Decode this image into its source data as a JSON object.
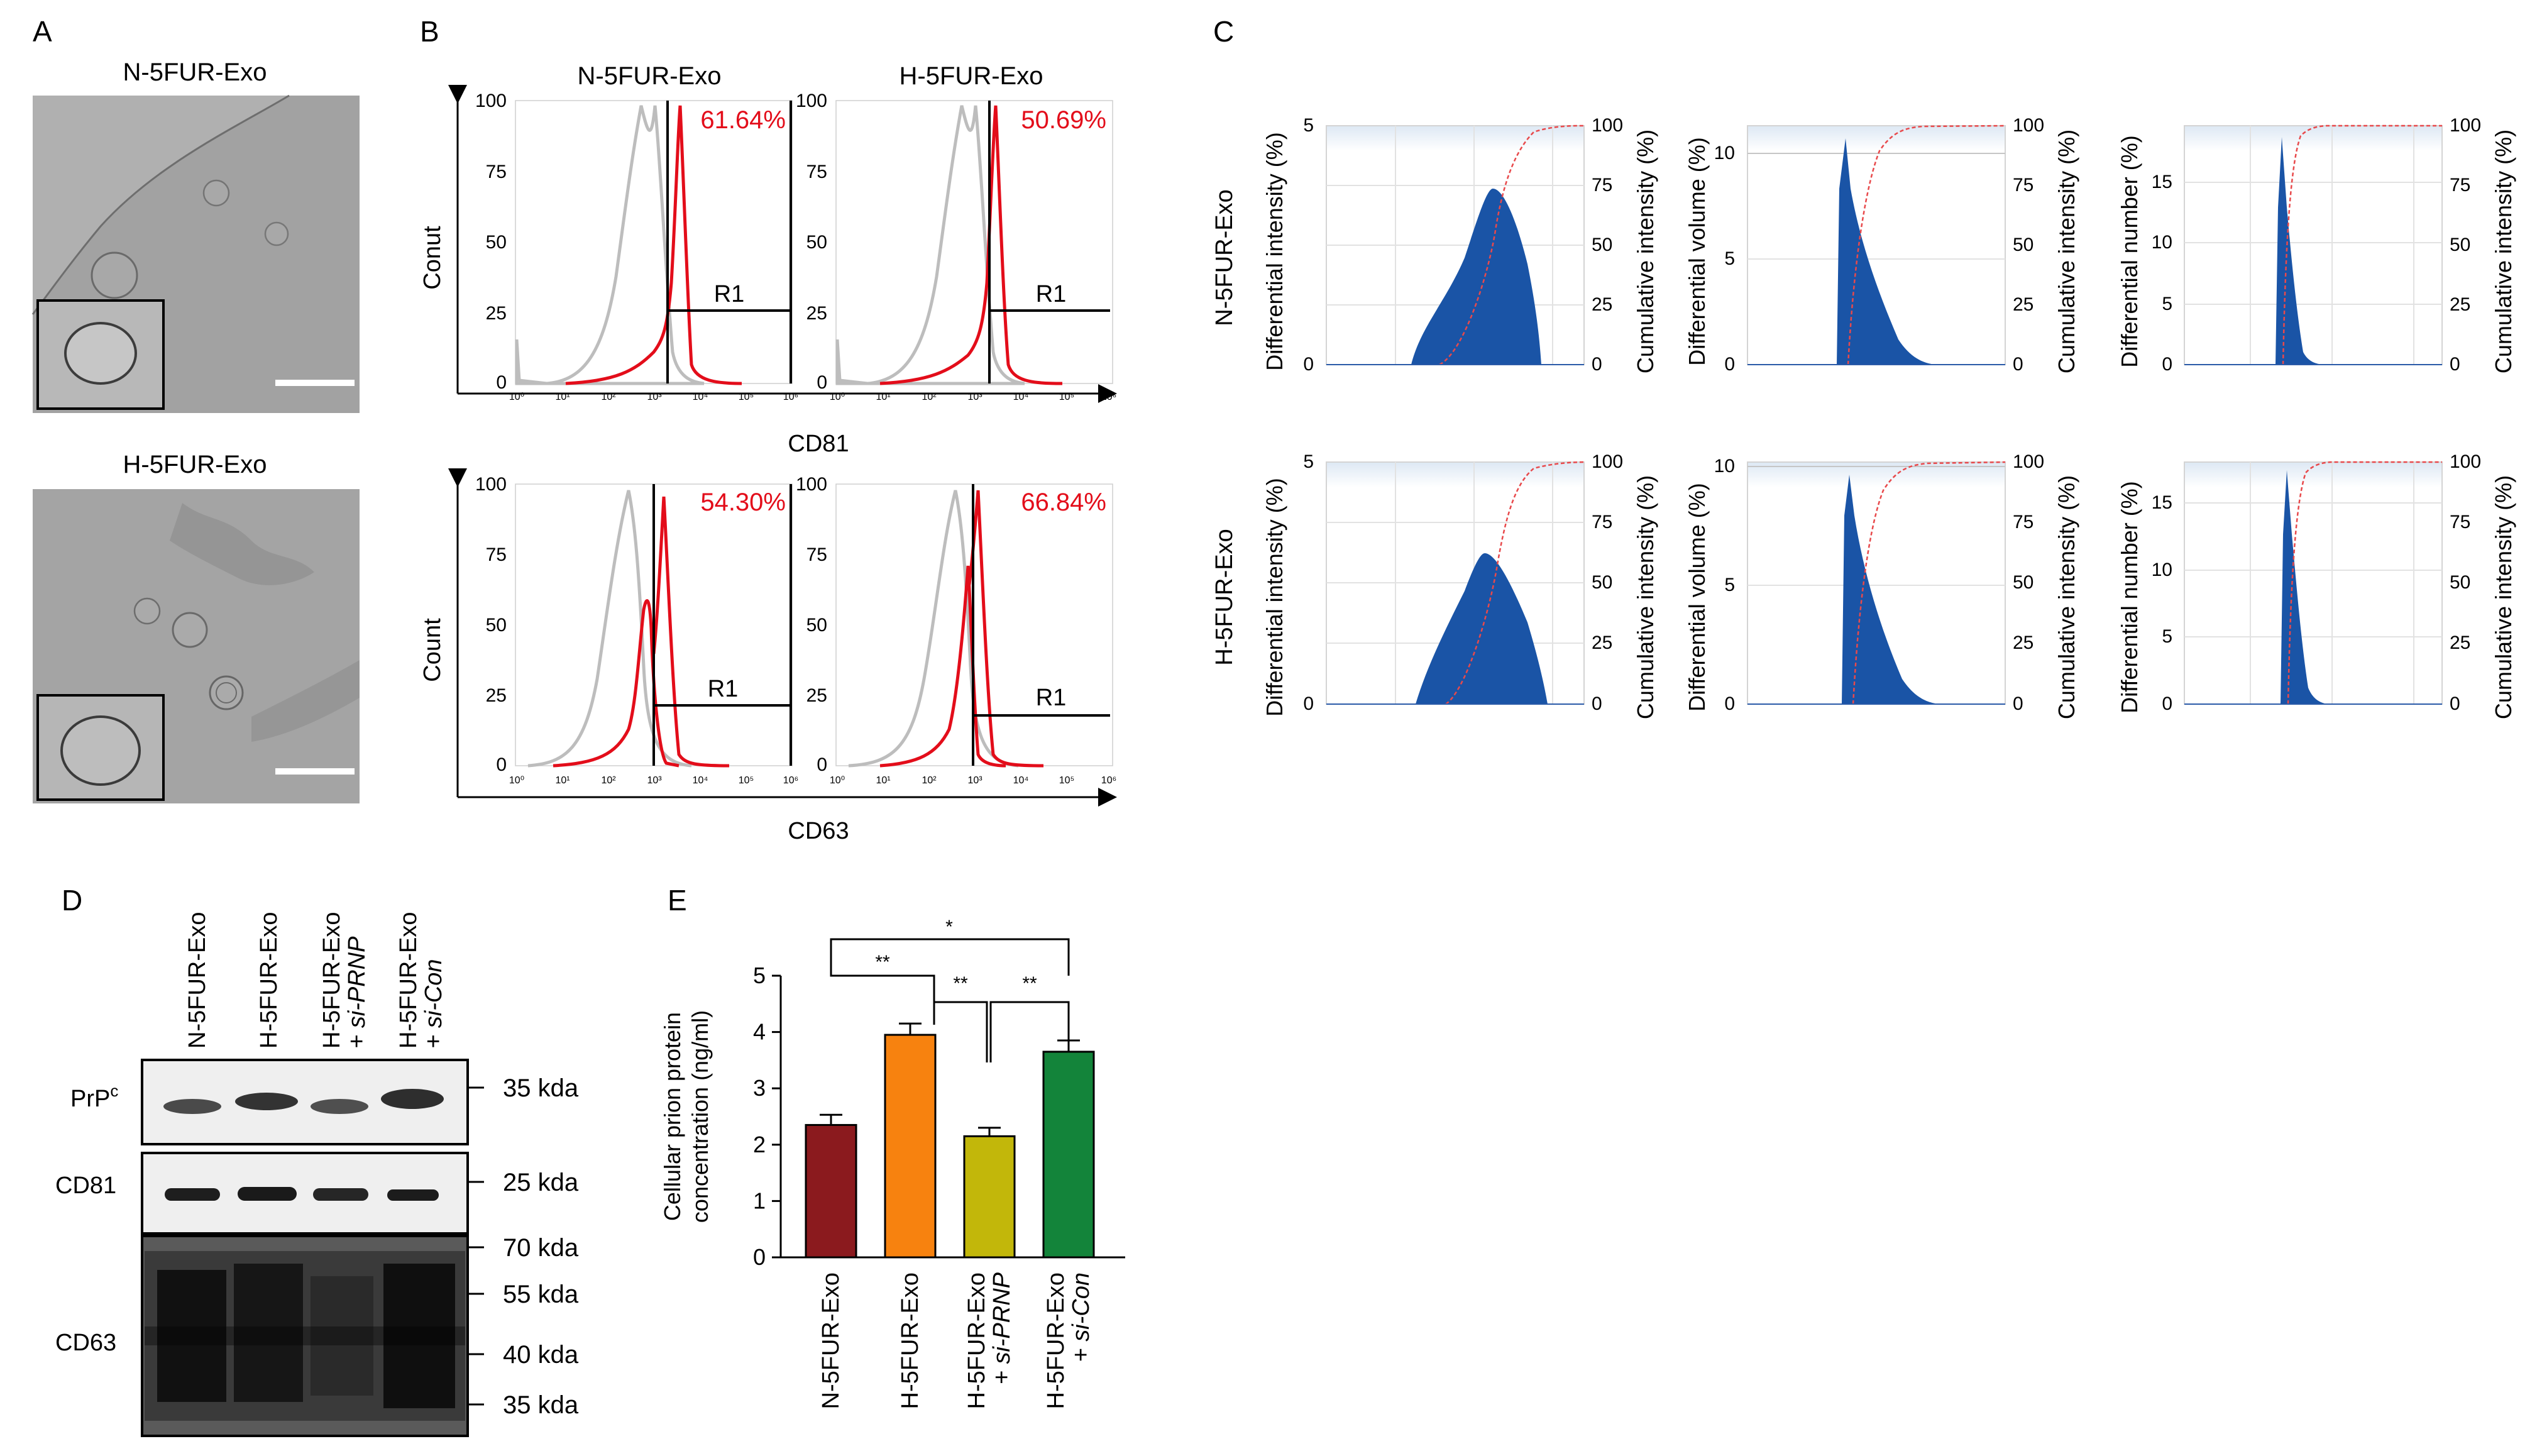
{
  "figure": {
    "panelA": {
      "letter": "A",
      "top_title": "N-5FUR-Exo",
      "bottom_title": "H-5FUR-Exo"
    },
    "panelB": {
      "letter": "B",
      "titles": [
        "N-5FUR-Exo",
        "H-5FUR-Exo"
      ],
      "top_ylabel": "Conut",
      "bottom_ylabel": "Count",
      "top_xlabel": "CD81",
      "bottom_xlabel": "CD63",
      "gate": "R1",
      "percentages": {
        "n_cd81": "61.64%",
        "h_cd81": "50.69%",
        "n_cd63": "54.30%",
        "h_cd63": "66.84%"
      },
      "yticks": [
        "0",
        "25",
        "50",
        "75",
        "100"
      ],
      "xticks": [
        "10⁰",
        "10¹",
        "10²",
        "10³",
        "10⁴",
        "10⁵",
        "10⁶"
      ]
    },
    "panelC": {
      "letter": "C",
      "row_labels": [
        "N-5FUR-Exo",
        "H-5FUR-Exo"
      ],
      "ylabels": {
        "intensity": "Differential intensity (%)",
        "volume": "Differential volume (%)",
        "number": "Differential number (%)",
        "cumulative": "Cumulative intensity (%)"
      },
      "right_ticks": [
        "0",
        "25",
        "50",
        "75",
        "100"
      ],
      "intensity_ticks": [
        "0",
        "5"
      ],
      "volume_ticks": [
        "0",
        "5",
        "10"
      ],
      "number_ticks": [
        "0",
        "5",
        "10",
        "15"
      ]
    },
    "panelD": {
      "letter": "D",
      "lanes": [
        {
          "line1": "N-5FUR-Exo",
          "line2": ""
        },
        {
          "line1": "H-5FUR-Exo",
          "line2": ""
        },
        {
          "line1": "H-5FUR-Exo",
          "line2": "+ si-PRNP"
        },
        {
          "line1": "H-5FUR-Exo",
          "line2": "+ si-Con"
        }
      ],
      "blots": {
        "prp": "PrP",
        "prp_sup": "c",
        "cd81": "CD81",
        "cd63": "CD63"
      },
      "markers": {
        "m35a": "35 kda",
        "m25": "25 kda",
        "m70": "70 kda",
        "m55": "55 kda",
        "m40": "40 kda",
        "m35b": "35 kda"
      }
    },
    "panelE": {
      "letter": "E",
      "ylabel_line1": "Cellular prion protein",
      "ylabel_line2": "concentration (ng/ml)",
      "sig": {
        "s1": "**",
        "s2": "**",
        "s3": "**",
        "s4": "*"
      }
    }
  },
  "chart_data": {
    "type": "bar",
    "categories": [
      "N-5FUR-Exo",
      "H-5FUR-Exo",
      "H-5FUR-Exo + si-PRNP",
      "H-5FUR-Exo + si-Con"
    ],
    "values": [
      2.35,
      3.95,
      2.15,
      3.65
    ],
    "errors": [
      0.18,
      0.2,
      0.15,
      0.2
    ],
    "colors": [
      "#8b1a1e",
      "#f7820f",
      "#c2b70a",
      "#13843a"
    ],
    "ylabel": "Cellular prion protein concentration (ng/ml)",
    "ylim": [
      0,
      5
    ],
    "yticks": [
      0,
      1,
      2,
      3,
      4,
      5
    ],
    "significance": [
      "**",
      "**",
      "**",
      "*"
    ]
  }
}
